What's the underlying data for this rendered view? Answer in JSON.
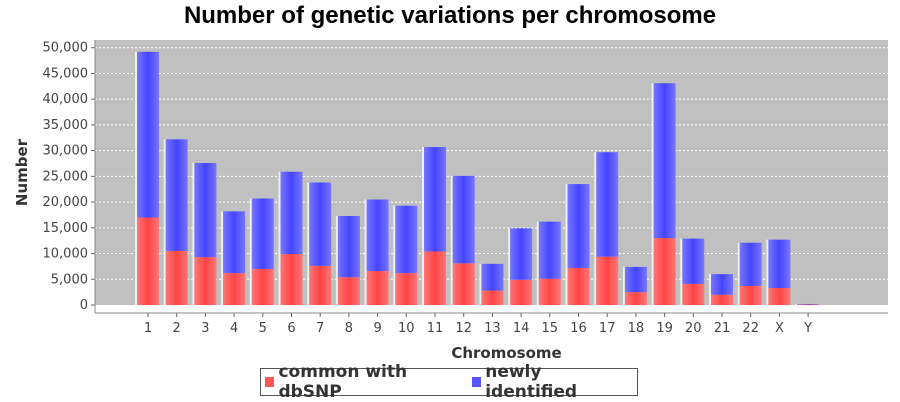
{
  "chart_data": {
    "type": "bar",
    "stacked": true,
    "title": "Number of genetic variations per chromosome",
    "xlabel": "Chromosome",
    "ylabel": "Number",
    "ylim": [
      0,
      51500
    ],
    "yticks": [
      0,
      5000,
      10000,
      15000,
      20000,
      25000,
      30000,
      35000,
      40000,
      45000,
      50000
    ],
    "ytick_labels": [
      "0",
      "5,000",
      "10,000",
      "15,000",
      "20,000",
      "25,000",
      "30,000",
      "35,000",
      "40,000",
      "45,000",
      "50,000"
    ],
    "grid": true,
    "legend_position": "bottom",
    "categories": [
      "1",
      "2",
      "3",
      "4",
      "5",
      "6",
      "7",
      "8",
      "9",
      "10",
      "11",
      "12",
      "13",
      "14",
      "15",
      "16",
      "17",
      "18",
      "19",
      "20",
      "21",
      "22",
      "X",
      "Y"
    ],
    "series": [
      {
        "name": "common with dbSNP",
        "color": "#ff5555",
        "values": [
          17000,
          10500,
          9300,
          6200,
          7000,
          9900,
          7600,
          5400,
          6600,
          6200,
          10400,
          8100,
          2800,
          4900,
          5100,
          7200,
          9400,
          2500,
          13000,
          4100,
          2000,
          3700,
          3300,
          100
        ]
      },
      {
        "name": "newly identified",
        "color": "#5555ff",
        "values": [
          32200,
          21700,
          18300,
          12000,
          13700,
          16000,
          16200,
          11900,
          13900,
          13100,
          20300,
          17000,
          5200,
          10000,
          11100,
          16300,
          20300,
          4900,
          30100,
          8800,
          4000,
          8400,
          9400,
          100
        ]
      }
    ],
    "colors": {
      "plot_background": "#c0c0c0",
      "gridline": "#ffffff"
    }
  }
}
